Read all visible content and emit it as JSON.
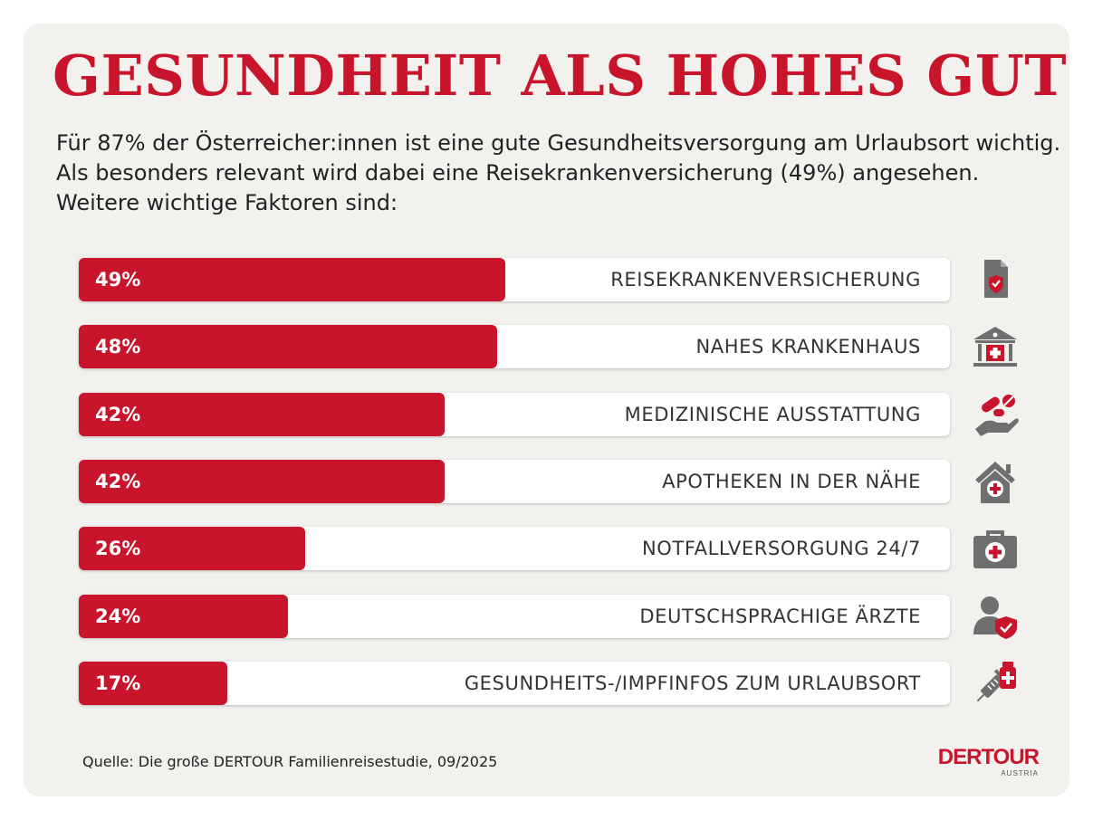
{
  "title": "GESUNDHEIT ALS HOHES GUT",
  "intro": [
    "Für 87% der Österreicher:innen ist eine gute Gesundheitsversorgung am Urlaubsort wichtig.",
    "Als besonders relevant wird dabei eine Reisekrankenversicherung (49%) angesehen.",
    "Weitere wichtige Faktoren sind:"
  ],
  "chart_data": {
    "type": "bar",
    "orientation": "horizontal",
    "title": "GESUNDHEIT ALS HOHES GUT",
    "xlim": [
      0,
      100
    ],
    "categories": [
      "REISEKRANKENVERSICHERUNG",
      "NAHES KRANKENHAUS",
      "MEDIZINISCHE AUSSTATTUNG",
      "APOTHEKEN IN DER NÄHE",
      "NOTFALLVERSORGUNG 24/7",
      "DEUTSCHSPRACHIGE ÄRZTE",
      "GESUNDHEITS-/IMPFINFOS ZUM URLAUBSORT"
    ],
    "values": [
      49,
      48,
      42,
      42,
      26,
      24,
      17
    ],
    "value_labels": [
      "49%",
      "48%",
      "42%",
      "42%",
      "26%",
      "24%",
      "17%"
    ],
    "icons": [
      "insurance-document-icon",
      "hospital-icon",
      "medicine-hand-icon",
      "pharmacy-icon",
      "first-aid-kit-icon",
      "doctor-icon",
      "vaccine-icon"
    ]
  },
  "colors": {
    "accent": "#c8152c",
    "icon_gray": "#6f6f6f",
    "background": "#f2f1ee"
  },
  "source": "Quelle: Die große DERTOUR Familienreisestudie, 09/2025",
  "logo": {
    "main": "DERTOUR",
    "sub": "AUSTRIA"
  }
}
